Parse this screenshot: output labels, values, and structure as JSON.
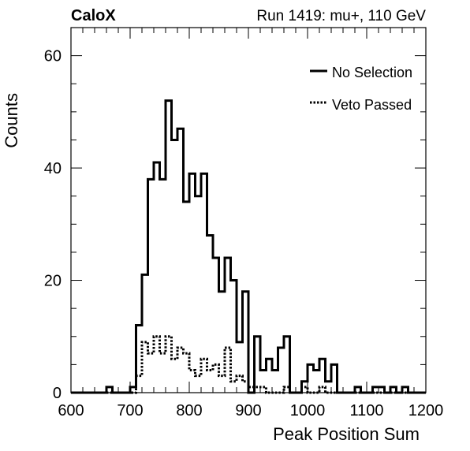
{
  "chart_data": {
    "type": "line",
    "title_left": "CaloX",
    "title_right": "Run 1419: mu+, 110 GeV",
    "xlabel": "Peak Position Sum",
    "ylabel": "Counts",
    "xlim": [
      600,
      1200
    ],
    "ylim": [
      0,
      65
    ],
    "xticks": [
      600,
      700,
      800,
      900,
      1000,
      1100,
      1200
    ],
    "yticks": [
      0,
      20,
      40,
      60
    ],
    "bin_width": 10,
    "x": [
      600,
      610,
      620,
      630,
      640,
      650,
      660,
      670,
      680,
      690,
      700,
      710,
      720,
      730,
      740,
      750,
      760,
      770,
      780,
      790,
      800,
      810,
      820,
      830,
      840,
      850,
      860,
      870,
      880,
      890,
      900,
      910,
      920,
      930,
      940,
      950,
      960,
      970,
      980,
      990,
      1000,
      1010,
      1020,
      1030,
      1040,
      1050,
      1060,
      1070,
      1080,
      1090,
      1100,
      1110,
      1120,
      1130,
      1140,
      1150,
      1160,
      1170,
      1180,
      1190
    ],
    "series": [
      {
        "name": "No Selection",
        "style": "solid",
        "color": "#000000",
        "values": [
          0,
          0,
          0,
          0,
          0,
          0,
          1,
          0,
          0,
          0,
          1,
          12,
          21,
          38,
          41,
          38,
          52,
          45,
          47,
          34,
          39,
          35,
          39,
          28,
          24,
          18,
          24,
          20,
          9,
          18,
          0,
          10,
          4,
          6,
          4,
          8,
          10,
          0,
          0,
          2,
          5,
          4,
          6,
          2,
          5,
          0,
          0,
          0,
          1,
          0,
          0,
          1,
          1,
          0,
          1,
          0,
          1,
          0,
          0,
          0
        ]
      },
      {
        "name": "Veto Passed",
        "style": "dotted",
        "color": "#000000",
        "values": [
          0,
          0,
          0,
          0,
          0,
          0,
          0,
          0,
          0,
          0,
          0,
          3,
          9,
          7,
          10,
          7,
          10,
          6,
          8,
          7,
          4,
          3,
          6,
          4,
          5,
          3,
          8,
          2,
          3,
          2,
          1,
          1,
          1,
          0,
          0,
          0,
          1,
          0,
          0,
          1,
          0,
          0,
          1,
          0,
          0,
          0,
          0,
          0,
          0,
          0,
          0,
          0,
          0,
          0,
          0,
          0,
          0,
          0,
          0,
          0
        ]
      }
    ],
    "legend_position": "top-right",
    "grid": false
  }
}
